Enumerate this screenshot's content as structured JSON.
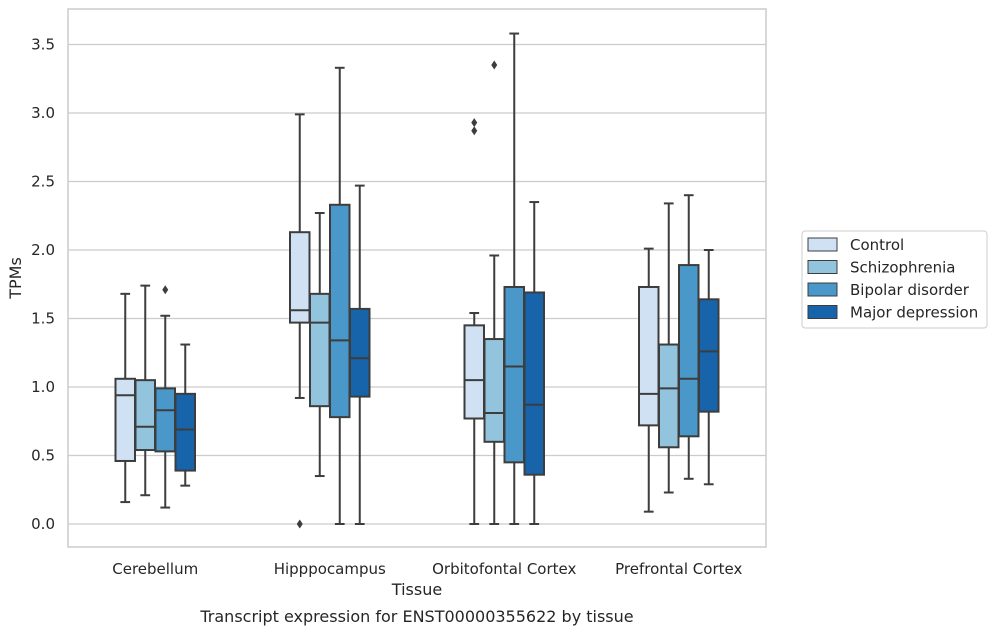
{
  "chart_data": {
    "type": "box",
    "title": "",
    "caption": "Transcript expression for ENST00000355622 by tissue",
    "xlabel": "Tissue",
    "ylabel": "TPMs",
    "ylim": [
      -0.17,
      3.77
    ],
    "yticks": [
      "0.0",
      "0.5",
      "1.0",
      "1.5",
      "2.0",
      "2.5",
      "3.0",
      "3.5"
    ],
    "grid": "horizontal",
    "legend_position": "right",
    "categories": [
      "Cerebellum",
      "Hipppocampus",
      "Orbitofontal Cortex",
      "Prefrontal Cortex"
    ],
    "series": [
      {
        "name": "Control",
        "color": "#cfe1f2",
        "boxes": [
          {
            "whisker_low": 0.16,
            "q1": 0.46,
            "median": 0.94,
            "q3": 1.06,
            "whisker_high": 1.68,
            "outliers": []
          },
          {
            "whisker_low": 0.92,
            "q1": 1.47,
            "median": 1.56,
            "q3": 2.13,
            "whisker_high": 2.99,
            "outliers": [
              0.0
            ]
          },
          {
            "whisker_low": 0.0,
            "q1": 0.77,
            "median": 1.05,
            "q3": 1.45,
            "whisker_high": 1.54,
            "outliers": [
              2.87,
              2.93
            ]
          },
          {
            "whisker_low": 0.09,
            "q1": 0.72,
            "median": 0.95,
            "q3": 1.73,
            "whisker_high": 2.01,
            "outliers": []
          }
        ]
      },
      {
        "name": "Schizophrenia",
        "color": "#93c4de",
        "boxes": [
          {
            "whisker_low": 0.21,
            "q1": 0.54,
            "median": 0.71,
            "q3": 1.05,
            "whisker_high": 1.74,
            "outliers": []
          },
          {
            "whisker_low": 0.35,
            "q1": 0.86,
            "median": 1.47,
            "q3": 1.68,
            "whisker_high": 2.27,
            "outliers": []
          },
          {
            "whisker_low": 0.0,
            "q1": 0.6,
            "median": 0.81,
            "q3": 1.35,
            "whisker_high": 1.96,
            "outliers": [
              3.35
            ]
          },
          {
            "whisker_low": 0.23,
            "q1": 0.56,
            "median": 0.99,
            "q3": 1.31,
            "whisker_high": 2.34,
            "outliers": []
          }
        ]
      },
      {
        "name": "Bipolar disorder",
        "color": "#4a98c9",
        "boxes": [
          {
            "whisker_low": 0.12,
            "q1": 0.53,
            "median": 0.83,
            "q3": 0.99,
            "whisker_high": 1.52,
            "outliers": [
              1.71
            ]
          },
          {
            "whisker_low": 0.0,
            "q1": 0.78,
            "median": 1.34,
            "q3": 2.33,
            "whisker_high": 3.33,
            "outliers": []
          },
          {
            "whisker_low": 0.0,
            "q1": 0.45,
            "median": 1.15,
            "q3": 1.73,
            "whisker_high": 3.58,
            "outliers": []
          },
          {
            "whisker_low": 0.33,
            "q1": 0.64,
            "median": 1.06,
            "q3": 1.89,
            "whisker_high": 2.4,
            "outliers": []
          }
        ]
      },
      {
        "name": "Major depression",
        "color": "#1764ab",
        "boxes": [
          {
            "whisker_low": 0.28,
            "q1": 0.39,
            "median": 0.69,
            "q3": 0.95,
            "whisker_high": 1.31,
            "outliers": []
          },
          {
            "whisker_low": 0.0,
            "q1": 0.93,
            "median": 1.21,
            "q3": 1.57,
            "whisker_high": 2.47,
            "outliers": []
          },
          {
            "whisker_low": 0.0,
            "q1": 0.36,
            "median": 0.87,
            "q3": 1.69,
            "whisker_high": 2.35,
            "outliers": []
          },
          {
            "whisker_low": 0.29,
            "q1": 0.82,
            "median": 1.26,
            "q3": 1.64,
            "whisker_high": 2.0,
            "outliers": []
          }
        ]
      }
    ]
  }
}
